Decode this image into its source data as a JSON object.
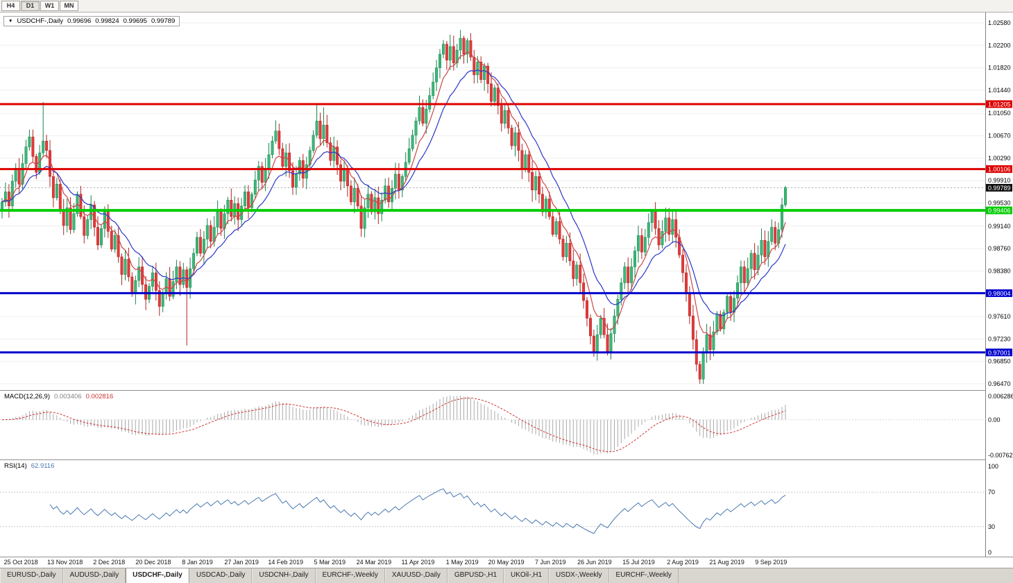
{
  "toolbar": {
    "timeframes": [
      "H4",
      "D1",
      "W1",
      "MN"
    ],
    "active_timeframe": "D1"
  },
  "chart": {
    "symbol_label": "USDCHF-,Daily",
    "ohlc": {
      "open": "0.99696",
      "high": "0.99824",
      "low": "0.99695",
      "close": "0.99789"
    }
  },
  "chart_data": {
    "type": "candlestick",
    "symbol": "USDCHF",
    "timeframe": "Daily",
    "last_bar": {
      "open": 0.99696,
      "high": 0.99824,
      "low": 0.99695,
      "close": 0.99789
    },
    "first_open": 0.994,
    "closes": [
      0.9955,
      0.9972,
      0.9948,
      0.999,
      1.0012,
      0.9985,
      1.002,
      1.0048,
      1.0065,
      1.0032,
      1.0005,
      1.0038,
      1.0058,
      1.0042,
      0.9998,
      0.9962,
      0.9985,
      0.994,
      0.9915,
      0.9945,
      0.9908,
      0.9935,
      0.9968,
      0.993,
      0.9898,
      0.9925,
      0.995,
      0.9912,
      0.9882,
      0.991,
      0.9938,
      0.9905,
      0.9875,
      0.9898,
      0.9862,
      0.9832,
      0.9858,
      0.9828,
      0.98,
      0.9822,
      0.9845,
      0.9815,
      0.979,
      0.9812,
      0.9835,
      0.9805,
      0.9778,
      0.98,
      0.9825,
      0.9795,
      0.982,
      0.9845,
      0.9815,
      0.984,
      0.981,
      0.9842,
      0.9868,
      0.9895,
      0.9868,
      0.9892,
      0.9915,
      0.9888,
      0.9912,
      0.9938,
      0.991,
      0.9935,
      0.9958,
      0.993,
      0.9952,
      0.9925,
      0.9948,
      0.9972,
      0.9945,
      0.9968,
      0.9992,
      1.0015,
      0.9988,
      1.0012,
      1.0035,
      1.0058,
      1.0075,
      1.0045,
      1.0015,
      1.0038,
      1.0008,
      0.998,
      1.0002,
      1.0025,
      0.9995,
      1.0018,
      1.0042,
      1.0068,
      1.0092,
      1.0062,
      1.0085,
      1.0055,
      1.0025,
      1.0048,
      1.0018,
      0.999,
      1.0012,
      0.9982,
      0.9955,
      0.9978,
      0.9948,
      0.991,
      0.9945,
      0.9968,
      0.9938,
      0.9962,
      0.9935,
      0.9958,
      0.9982,
      0.9955,
      0.9978,
      1.0002,
      0.9975,
      0.9998,
      1.0022,
      1.0045,
      1.0068,
      1.0092,
      1.0115,
      1.0088,
      1.0112,
      1.0135,
      1.0158,
      1.0182,
      1.0205,
      1.0222,
      1.0195,
      1.0218,
      1.019,
      1.0212,
      1.0232,
      1.0205,
      1.0228,
      1.02,
      1.017,
      1.0192,
      1.0162,
      1.0185,
      1.0155,
      1.0125,
      1.0148,
      1.0118,
      1.0088,
      1.011,
      1.008,
      1.005,
      1.0072,
      1.0042,
      1.0012,
      1.0035,
      1.0005,
      0.9975,
      0.9998,
      0.9968,
      0.9938,
      0.996,
      0.993,
      0.99,
      0.9922,
      0.9892,
      0.9862,
      0.9885,
      0.9855,
      0.9825,
      0.9848,
      0.9818,
      0.9788,
      0.9758,
      0.9728,
      0.97,
      0.973,
      0.9758,
      0.973,
      0.9702,
      0.9732,
      0.9762,
      0.979,
      0.9818,
      0.9845,
      0.9818,
      0.9845,
      0.9872,
      0.9898,
      0.987,
      0.9895,
      0.992,
      0.9938,
      0.991,
      0.9882,
      0.9905,
      0.9928,
      0.99,
      0.9925,
      0.9895,
      0.9865,
      0.9835,
      0.98,
      0.9762,
      0.9722,
      0.968,
      0.9655,
      0.97,
      0.973,
      0.9705,
      0.9735,
      0.9765,
      0.974,
      0.9768,
      0.9795,
      0.9768,
      0.9792,
      0.9818,
      0.9845,
      0.9818,
      0.9842,
      0.9868,
      0.984,
      0.9865,
      0.989,
      0.9862,
      0.9888,
      0.9912,
      0.9885,
      0.9908,
      0.995,
      0.9979
    ],
    "spikes": [
      {
        "i": 12,
        "h": 1.0124
      },
      {
        "i": 54,
        "l": 0.9712
      },
      {
        "i": 80,
        "h": 1.0093
      },
      {
        "i": 92,
        "h": 1.0121
      },
      {
        "i": 94,
        "h": 1.0115
      },
      {
        "i": 105,
        "l": 0.9896
      },
      {
        "i": 131,
        "h": 1.0238
      },
      {
        "i": 134,
        "h": 1.0246
      },
      {
        "i": 173,
        "l": 0.9693
      },
      {
        "i": 177,
        "l": 0.9695
      },
      {
        "i": 203,
        "l": 0.9668
      },
      {
        "i": 204,
        "l": 0.9647
      },
      {
        "i": 229,
        "h": 0.9982,
        "l": 0.9946
      }
    ],
    "moving_averages": [
      {
        "period": 7,
        "color": "#cc4444"
      },
      {
        "period": 15,
        "color": "#2936c8"
      }
    ],
    "y_ticks": [
      {
        "v": 1.0258,
        "t": "1.02580"
      },
      {
        "v": 1.022,
        "t": "1.02200"
      },
      {
        "v": 1.0182,
        "t": "1.01820"
      },
      {
        "v": 1.0144,
        "t": "1.01440"
      },
      {
        "v": 1.0105,
        "t": "1.01050"
      },
      {
        "v": 1.0067,
        "t": "1.00670"
      },
      {
        "v": 1.0029,
        "t": "1.00290"
      },
      {
        "v": 0.9991,
        "t": "0.99910"
      },
      {
        "v": 0.9953,
        "t": "0.99530"
      },
      {
        "v": 0.9914,
        "t": "0.99140"
      },
      {
        "v": 0.9876,
        "t": "0.98760"
      },
      {
        "v": 0.9838,
        "t": "0.98380"
      },
      {
        "v": 0.9761,
        "t": "0.97610"
      },
      {
        "v": 0.9723,
        "t": "0.97230"
      },
      {
        "v": 0.9685,
        "t": "0.96850"
      },
      {
        "v": 0.9647,
        "t": "0.96470"
      }
    ],
    "hlines": [
      {
        "value": 1.01205,
        "label": "1.01205",
        "color": "#dd0000",
        "width": 3
      },
      {
        "value": 1.00106,
        "label": "1.00106",
        "color": "#dd0000",
        "width": 3
      },
      {
        "value": 0.99406,
        "label": "0.99406",
        "color": "#00cc00",
        "width": 4
      },
      {
        "value": 0.98004,
        "label": "0.98004",
        "color": "#0000cc",
        "width": 3
      },
      {
        "value": 0.97001,
        "label": "0.97001",
        "color": "#0000cc",
        "width": 3
      }
    ],
    "price_line": {
      "value": 0.99789,
      "label": "0.99789",
      "color": "#111111"
    },
    "x_labels": [
      {
        "i": 5.5,
        "label": "25 Oct 2018"
      },
      {
        "i": 18.4,
        "label": "13 Nov 2018"
      },
      {
        "i": 31.3,
        "label": "2 Dec 2018"
      },
      {
        "i": 44.2,
        "label": "20 Dec 2018"
      },
      {
        "i": 57.1,
        "label": "8 Jan 2019"
      },
      {
        "i": 70,
        "label": "27 Jan 2019"
      },
      {
        "i": 82.9,
        "label": "14 Feb 2019"
      },
      {
        "i": 95.8,
        "label": "5 Mar 2019"
      },
      {
        "i": 108.7,
        "label": "24 Mar 2019"
      },
      {
        "i": 121.6,
        "label": "11 Apr 2019"
      },
      {
        "i": 134.5,
        "label": "1 May 2019"
      },
      {
        "i": 147.4,
        "label": "20 May 2019"
      },
      {
        "i": 160.3,
        "label": "7 Jun 2019"
      },
      {
        "i": 173.2,
        "label": "26 Jun 2019"
      },
      {
        "i": 186.1,
        "label": "15 Jul 2019"
      },
      {
        "i": 199,
        "label": "2 Aug 2019"
      },
      {
        "i": 211.9,
        "label": "21 Aug 2019"
      },
      {
        "i": 224.8,
        "label": "9 Sep 2019"
      }
    ],
    "macd": {
      "label": "MACD(12,26,9)",
      "value1": "0.003406",
      "value2": "0.002816",
      "fast": 12,
      "slow": 26,
      "signal_period": 9,
      "axis_labels": [
        "0.006286",
        "0.00",
        "-0.00762"
      ]
    },
    "rsi": {
      "label": "RSI(14)",
      "value": "62.9116",
      "period": 14,
      "levels": [
        70,
        30
      ],
      "axis_labels": [
        "100",
        "70",
        "30",
        "0"
      ]
    }
  },
  "tabs": [
    {
      "label": "EURUSD-,Daily"
    },
    {
      "label": "AUDUSD-,Daily"
    },
    {
      "label": "USDCHF-,Daily",
      "active": true
    },
    {
      "label": "USDCAD-,Daily"
    },
    {
      "label": "USDCNH-,Daily"
    },
    {
      "label": "EURCHF-,Weekly"
    },
    {
      "label": "XAUUSD-,Daily"
    },
    {
      "label": "GBPUSD-,H1"
    },
    {
      "label": "UKOil-,H1"
    },
    {
      "label": "USDX-,Weekly"
    },
    {
      "label": "EURCHF-,Weekly"
    }
  ],
  "colors": {
    "bull": "#3cb878",
    "bull_border": "#17824e",
    "bear": "#e23b3b",
    "bear_border": "#b31f1f",
    "macd_hist": "#a8a8a8",
    "macd_signal": "#cc3333",
    "rsi_line": "#4878b0"
  }
}
